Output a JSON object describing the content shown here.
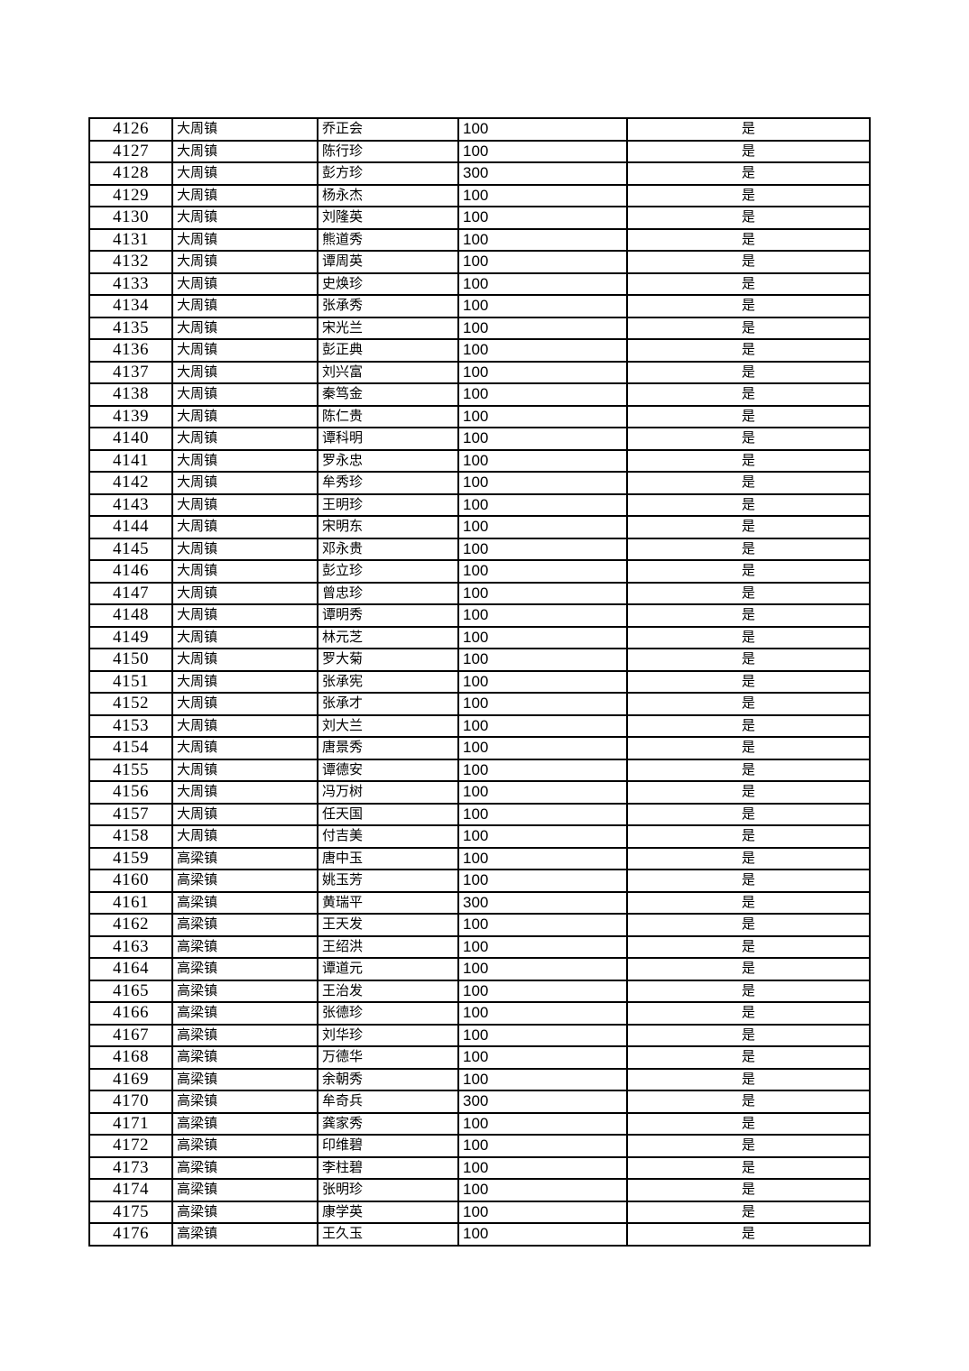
{
  "document": {
    "background": "#ffffff",
    "border_color": "#000000",
    "text_color": "#000000"
  },
  "table": {
    "columns": [
      {
        "key": "serial",
        "align": "center"
      },
      {
        "key": "town",
        "align": "left"
      },
      {
        "key": "name",
        "align": "left"
      },
      {
        "key": "amount",
        "align": "left"
      },
      {
        "key": "confirmed",
        "align": "center"
      }
    ],
    "rows": [
      [
        "4126",
        "大周镇",
        "乔正会",
        "100",
        "是"
      ],
      [
        "4127",
        "大周镇",
        "陈行珍",
        "100",
        "是"
      ],
      [
        "4128",
        "大周镇",
        "彭方珍",
        "300",
        "是"
      ],
      [
        "4129",
        "大周镇",
        "杨永杰",
        "100",
        "是"
      ],
      [
        "4130",
        "大周镇",
        "刘隆英",
        "100",
        "是"
      ],
      [
        "4131",
        "大周镇",
        "熊道秀",
        "100",
        "是"
      ],
      [
        "4132",
        "大周镇",
        "谭周英",
        "100",
        "是"
      ],
      [
        "4133",
        "大周镇",
        "史焕珍",
        "100",
        "是"
      ],
      [
        "4134",
        "大周镇",
        "张承秀",
        "100",
        "是"
      ],
      [
        "4135",
        "大周镇",
        "宋光兰",
        "100",
        "是"
      ],
      [
        "4136",
        "大周镇",
        "彭正典",
        "100",
        "是"
      ],
      [
        "4137",
        "大周镇",
        "刘兴富",
        "100",
        "是"
      ],
      [
        "4138",
        "大周镇",
        "秦笃金",
        "100",
        "是"
      ],
      [
        "4139",
        "大周镇",
        "陈仁贵",
        "100",
        "是"
      ],
      [
        "4140",
        "大周镇",
        "谭科明",
        "100",
        "是"
      ],
      [
        "4141",
        "大周镇",
        "罗永忠",
        "100",
        "是"
      ],
      [
        "4142",
        "大周镇",
        "牟秀珍",
        "100",
        "是"
      ],
      [
        "4143",
        "大周镇",
        "王明珍",
        "100",
        "是"
      ],
      [
        "4144",
        "大周镇",
        "宋明东",
        "100",
        "是"
      ],
      [
        "4145",
        "大周镇",
        "邓永贵",
        "100",
        "是"
      ],
      [
        "4146",
        "大周镇",
        "彭立珍",
        "100",
        "是"
      ],
      [
        "4147",
        "大周镇",
        "曾忠珍",
        "100",
        "是"
      ],
      [
        "4148",
        "大周镇",
        "谭明秀",
        "100",
        "是"
      ],
      [
        "4149",
        "大周镇",
        "林元芝",
        "100",
        "是"
      ],
      [
        "4150",
        "大周镇",
        "罗大菊",
        "100",
        "是"
      ],
      [
        "4151",
        "大周镇",
        "张承宪",
        "100",
        "是"
      ],
      [
        "4152",
        "大周镇",
        "张承才",
        "100",
        "是"
      ],
      [
        "4153",
        "大周镇",
        "刘大兰",
        "100",
        "是"
      ],
      [
        "4154",
        "大周镇",
        "唐景秀",
        "100",
        "是"
      ],
      [
        "4155",
        "大周镇",
        "谭德安",
        "100",
        "是"
      ],
      [
        "4156",
        "大周镇",
        "冯万树",
        "100",
        "是"
      ],
      [
        "4157",
        "大周镇",
        "任天国",
        "100",
        "是"
      ],
      [
        "4158",
        "大周镇",
        "付吉美",
        "100",
        "是"
      ],
      [
        "4159",
        "高梁镇",
        "唐中玉",
        "100",
        "是"
      ],
      [
        "4160",
        "高梁镇",
        "姚玉芳",
        "100",
        "是"
      ],
      [
        "4161",
        "高梁镇",
        "黄瑞平",
        "300",
        "是"
      ],
      [
        "4162",
        "高梁镇",
        "王天发",
        "100",
        "是"
      ],
      [
        "4163",
        "高梁镇",
        "王绍洪",
        "100",
        "是"
      ],
      [
        "4164",
        "高梁镇",
        "谭道元",
        "100",
        "是"
      ],
      [
        "4165",
        "高梁镇",
        "王治发",
        "100",
        "是"
      ],
      [
        "4166",
        "高梁镇",
        "张德珍",
        "100",
        "是"
      ],
      [
        "4167",
        "高梁镇",
        "刘华珍",
        "100",
        "是"
      ],
      [
        "4168",
        "高梁镇",
        "万德华",
        "100",
        "是"
      ],
      [
        "4169",
        "高梁镇",
        "余朝秀",
        "100",
        "是"
      ],
      [
        "4170",
        "高梁镇",
        "牟奇兵",
        "300",
        "是"
      ],
      [
        "4171",
        "高梁镇",
        "龚家秀",
        "100",
        "是"
      ],
      [
        "4172",
        "高梁镇",
        "印维碧",
        "100",
        "是"
      ],
      [
        "4173",
        "高梁镇",
        "李柱碧",
        "100",
        "是"
      ],
      [
        "4174",
        "高梁镇",
        "张明珍",
        "100",
        "是"
      ],
      [
        "4175",
        "高梁镇",
        "康学英",
        "100",
        "是"
      ],
      [
        "4176",
        "高梁镇",
        "王久玉",
        "100",
        "是"
      ]
    ]
  }
}
